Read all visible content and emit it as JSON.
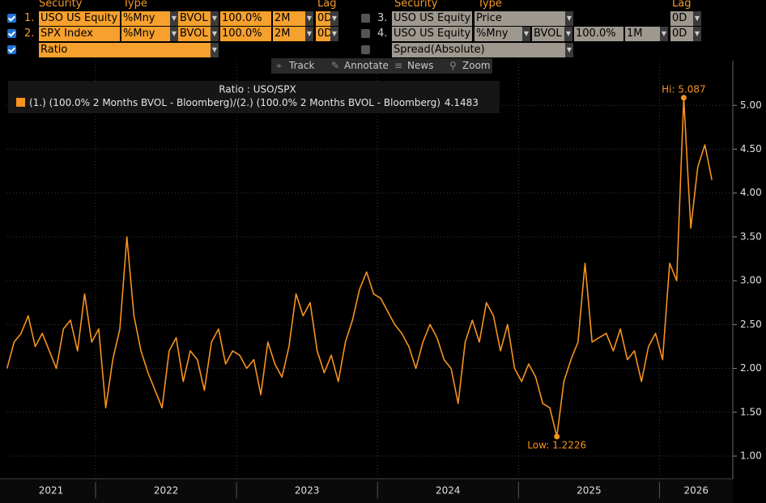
{
  "header": {
    "left": {
      "columns": [
        "Security",
        "Type",
        "Lag"
      ],
      "rows": [
        {
          "num": "1.",
          "fields": [
            "USO US Equity",
            "%Mny",
            "BVOL",
            "100.0%",
            "2M",
            "0D"
          ]
        },
        {
          "num": "2.",
          "fields": [
            "SPX Index",
            "%Mny",
            "BVOL",
            "100.0%",
            "2M",
            "0D"
          ]
        },
        {
          "fields": [
            "Ratio"
          ]
        }
      ]
    },
    "right": {
      "columns": [
        "Security",
        "Type",
        "Lag"
      ],
      "rows": [
        {
          "num": "3.",
          "fields": [
            "USO US Equity",
            "Price",
            "0D"
          ]
        },
        {
          "num": "4.",
          "fields": [
            "USO US Equity",
            "%Mny",
            "BVOL",
            "100.0%",
            "1M",
            "0D"
          ]
        },
        {
          "fields": [
            "Spread(Absolute)"
          ]
        }
      ]
    }
  },
  "toolbar": [
    "Track",
    "Annotate",
    "News",
    "Zoom"
  ],
  "chart_data": {
    "type": "line",
    "legend_title": "Ratio : USO/SPX",
    "x": [
      2021.372,
      2021.422,
      2021.472,
      2021.522,
      2021.572,
      2021.622,
      2021.672,
      2021.722,
      2021.772,
      2021.822,
      2021.872,
      2021.922,
      2021.972,
      2022.022,
      2022.072,
      2022.122,
      2022.172,
      2022.222,
      2022.272,
      2022.322,
      2022.372,
      2022.422,
      2022.472,
      2022.522,
      2022.572,
      2022.622,
      2022.672,
      2022.722,
      2022.772,
      2022.822,
      2022.872,
      2022.922,
      2022.972,
      2023.022,
      2023.072,
      2023.122,
      2023.172,
      2023.222,
      2023.272,
      2023.322,
      2023.372,
      2023.422,
      2023.472,
      2023.522,
      2023.572,
      2023.622,
      2023.672,
      2023.722,
      2023.772,
      2023.822,
      2023.872,
      2023.922,
      2023.972,
      2024.022,
      2024.072,
      2024.122,
      2024.172,
      2024.222,
      2024.272,
      2024.322,
      2024.372,
      2024.422,
      2024.472,
      2024.522,
      2024.572,
      2024.622,
      2024.672,
      2024.722,
      2024.772,
      2024.822,
      2024.872,
      2024.922,
      2024.972,
      2025.022,
      2025.072,
      2025.122,
      2025.172,
      2025.222,
      2025.272,
      2025.322,
      2025.372,
      2025.422,
      2025.472,
      2025.522,
      2025.572,
      2025.622,
      2025.672,
      2025.722,
      2025.772,
      2025.822,
      2025.872,
      2025.922,
      2025.972,
      2026.022,
      2026.072,
      2026.122,
      2026.172,
      2026.222,
      2026.272,
      2026.322,
      2026.372
    ],
    "series": [
      {
        "name": "(1.)  (100.0% 2 Months BVOL - Bloomberg)/(2.)  (100.0% 2 Months BVOL - Bloomberg)",
        "color": "#f7931e",
        "values": [
          2.0,
          2.3,
          2.4,
          2.6,
          2.25,
          2.4,
          2.2,
          2.0,
          2.45,
          2.55,
          2.2,
          2.85,
          2.3,
          2.45,
          1.55,
          2.1,
          2.45,
          3.5,
          2.6,
          2.2,
          1.95,
          1.75,
          1.55,
          2.2,
          2.35,
          1.85,
          2.2,
          2.1,
          1.75,
          2.3,
          2.45,
          2.05,
          2.2,
          2.15,
          2.0,
          2.1,
          1.7,
          2.3,
          2.05,
          1.9,
          2.25,
          2.85,
          2.6,
          2.75,
          2.2,
          1.95,
          2.15,
          1.85,
          2.3,
          2.55,
          2.9,
          3.1,
          2.85,
          2.8,
          2.65,
          2.5,
          2.4,
          2.25,
          2.0,
          2.3,
          2.5,
          2.35,
          2.1,
          2.0,
          1.6,
          2.3,
          2.55,
          2.3,
          2.75,
          2.6,
          2.2,
          2.5,
          2.0,
          1.85,
          2.05,
          1.9,
          1.6,
          1.55,
          1.2226,
          1.85,
          2.1,
          2.3,
          3.2,
          2.3,
          2.35,
          2.4,
          2.2,
          2.45,
          2.1,
          2.2,
          1.85,
          2.25,
          2.4,
          2.1,
          3.2,
          3.0,
          5.087,
          3.6,
          4.3,
          4.55,
          4.1483
        ]
      }
    ],
    "last_value": 4.1483,
    "annotations": [
      {
        "text": "Hi: 5.087",
        "x": 2026.172,
        "y": 5.087
      },
      {
        "text": "Low: 1.2226",
        "x": 2025.272,
        "y": 1.2226
      }
    ],
    "xlim": [
      2021.368,
      2026.52
    ],
    "xticks": [
      2021,
      2022,
      2023,
      2024,
      2025,
      2026
    ],
    "ylim": [
      0.76,
      5.51
    ],
    "yticks": [
      {
        "value": 1,
        "label": "1.00"
      },
      {
        "value": 1.5,
        "label": "1.50"
      },
      {
        "value": 2,
        "label": "2.00"
      },
      {
        "value": 2.5,
        "label": "2.50"
      },
      {
        "value": 3,
        "label": "3.00"
      },
      {
        "value": 3.5,
        "label": "3.50"
      },
      {
        "value": 4,
        "label": "4.00"
      },
      {
        "value": 4.5,
        "label": "4.50"
      },
      {
        "value": 5,
        "label": "5.00"
      }
    ],
    "grid": true
  }
}
